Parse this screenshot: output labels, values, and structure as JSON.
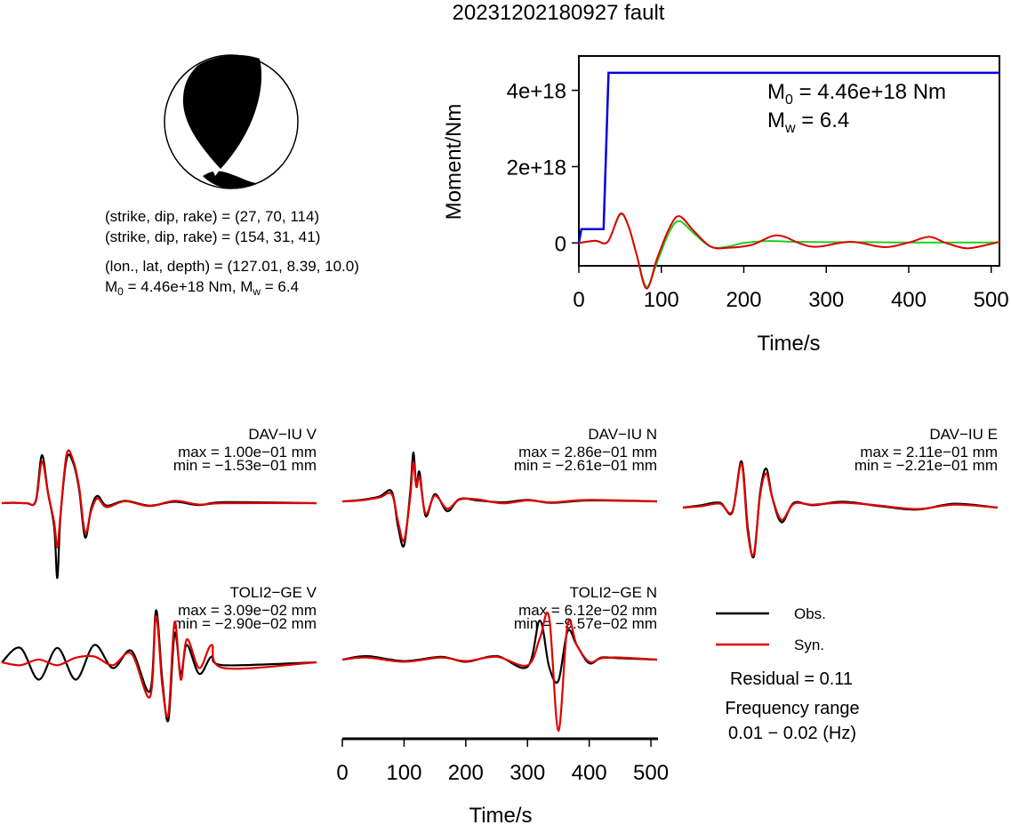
{
  "title": "20231202180927 fault",
  "mechanism": {
    "line1": "(strike, dip, rake) = (27, 70, 114)",
    "line2": "(strike, dip, rake) = (154, 31, 41)",
    "line3": "(lon., lat, depth) = (127.01, 8.39, 10.0)",
    "line4_m0": "M",
    "line4_m0_sub": "0",
    "line4_m0_rest": " = 4.46e+18 Nm, M",
    "line4_mw_sub": "w",
    "line4_mw_rest": " = 6.4"
  },
  "moment_panel": {
    "ylabel": "Moment/Nm",
    "xlabel": "Time/s",
    "m0_label": "M",
    "m0_sub": "0",
    "m0_rest": " = 4.46e+18 Nm",
    "mw_label": "M",
    "mw_sub": "w",
    "mw_rest": " = 6.4"
  },
  "waveform_axis": {
    "xlabel": "Time/s"
  },
  "legend": {
    "obs": "Obs.",
    "syn": "Syn.",
    "residual": "Residual = 0.11",
    "freq_label": "Frequency range",
    "freq_value": "0.01 − 0.02 (Hz)"
  },
  "colors": {
    "obs": "#000000",
    "syn": "#e00000",
    "cumulative": "#0000dd",
    "rate_syn": "#e00000",
    "rate_ref": "#22cc22"
  },
  "chart_data": [
    {
      "type": "line",
      "name": "moment",
      "xlim": [
        0,
        510
      ],
      "ylim": [
        -6e+17,
        4.9e+18
      ],
      "xticks": [
        "0",
        "100",
        "200",
        "300",
        "400",
        "500"
      ],
      "xtick_values": [
        0,
        100,
        200,
        300,
        400,
        500
      ],
      "yticks": [
        "0",
        "2e+18",
        "4e+18"
      ],
      "ytick_values": [
        0,
        2e+18,
        4e+18
      ],
      "series": [
        {
          "color": "#0000dd",
          "x": [
            0,
            3,
            30,
            36,
            40,
            510
          ],
          "y": [
            0,
            3.6e+17,
            3.6e+17,
            4.46e+18,
            4.46e+18,
            4.46e+18
          ]
        },
        {
          "color": "#22cc22",
          "x": [
            0,
            20,
            35,
            50,
            60,
            70,
            82,
            95,
            110,
            122,
            140,
            160,
            180,
            200,
            230,
            260,
            300,
            350,
            400,
            450,
            510
          ],
          "y": [
            0,
            5e+16,
            3e+16,
            7.4e+17,
            4.5e+17,
            -3e+17,
            -1.15e+18,
            -5e+17,
            3e+17,
            5.7e+17,
            2.4e+17,
            -1e+17,
            -1e+17,
            0,
            5e+16,
            3e+16,
            2e+16,
            2e+16,
            1e+16,
            1e+16,
            1e+16
          ]
        },
        {
          "color": "#e00000",
          "x": [
            0,
            20,
            35,
            50,
            60,
            70,
            82,
            95,
            110,
            122,
            140,
            160,
            180,
            210,
            240,
            270,
            290,
            330,
            370,
            400,
            425,
            445,
            470,
            495,
            510
          ],
          "y": [
            0,
            6e+16,
            3e+16,
            7.6e+17,
            4.5e+17,
            -3e+17,
            -1.2e+18,
            -4e+17,
            4e+17,
            7e+17,
            3e+17,
            -1e+17,
            -1.3e+17,
            -5e+16,
            2e+17,
            -3e+16,
            -1e+17,
            3e+16,
            -1.1e+17,
            1e+16,
            1.6e+17,
            0,
            -1.4e+17,
            -5e+16,
            3e+16
          ]
        }
      ]
    },
    {
      "type": "line",
      "station": "DAV−IU V",
      "max": "max = 1.00e−01 mm",
      "min": "min = −1.53e−01 mm",
      "series": [
        {
          "name": "Obs.",
          "x": [
            0,
            20,
            40,
            55,
            65,
            75,
            85,
            90,
            95,
            105,
            115,
            125,
            135,
            145,
            155,
            170,
            200,
            240,
            280,
            320,
            360,
            510
          ],
          "y": [
            0,
            0.01,
            0,
            0.05,
            0.98,
            0.2,
            -0.5,
            -1.53,
            -0.3,
            0.9,
            0.85,
            0.3,
            -0.7,
            -0.1,
            0.15,
            -0.05,
            0.05,
            -0.05,
            0.03,
            -0.04,
            0.02,
            0
          ]
        },
        {
          "name": "Syn.",
          "x": [
            0,
            20,
            40,
            55,
            65,
            75,
            85,
            90,
            95,
            105,
            115,
            125,
            135,
            145,
            155,
            170,
            200,
            240,
            280,
            320,
            360,
            510
          ],
          "y": [
            0,
            0.01,
            0,
            0.03,
            0.85,
            0.2,
            -0.4,
            -0.9,
            -0.25,
            1.0,
            0.9,
            0.35,
            -0.6,
            -0.15,
            0.1,
            -0.08,
            0.04,
            -0.06,
            0.05,
            -0.03,
            0.0,
            0
          ]
        }
      ]
    },
    {
      "type": "line",
      "station": "DAV−IU N",
      "max": "max = 2.86e−01 mm",
      "min": "min = −2.61e−01 mm",
      "series": [
        {
          "name": "Obs.",
          "x": [
            0,
            30,
            60,
            80,
            90,
            100,
            110,
            115,
            120,
            125,
            135,
            150,
            170,
            190,
            220,
            260,
            300,
            340,
            400,
            510
          ],
          "y": [
            0,
            0.03,
            0.1,
            0.2,
            -0.5,
            -0.9,
            0.2,
            1.0,
            0.3,
            0.6,
            -0.3,
            0.15,
            -0.2,
            0.05,
            0.02,
            -0.02,
            0.03,
            -0.03,
            0.02,
            0
          ]
        },
        {
          "name": "Syn.",
          "x": [
            0,
            30,
            60,
            80,
            90,
            100,
            110,
            115,
            120,
            125,
            135,
            150,
            170,
            190,
            220,
            260,
            300,
            340,
            400,
            510
          ],
          "y": [
            0,
            0.02,
            0.08,
            0.15,
            -0.4,
            -0.8,
            0.1,
            0.8,
            0.3,
            0.5,
            -0.25,
            0.12,
            -0.15,
            0.04,
            0.04,
            -0.04,
            0.02,
            -0.02,
            0.03,
            0
          ]
        }
      ]
    },
    {
      "type": "line",
      "station": "DAV−IU E",
      "max": "max = 2.11e−01 mm",
      "min": "min = −2.21e−01 mm",
      "series": [
        {
          "name": "Obs.",
          "x": [
            0,
            30,
            60,
            80,
            95,
            105,
            115,
            125,
            135,
            145,
            160,
            180,
            210,
            260,
            320,
            380,
            440,
            510
          ],
          "y": [
            0,
            0.05,
            0.1,
            -0.1,
            0.95,
            -0.4,
            -1.0,
            0.3,
            0.8,
            0.2,
            -0.3,
            0.1,
            0.05,
            0.12,
            0.03,
            -0.04,
            0.08,
            0
          ]
        },
        {
          "name": "Syn.",
          "x": [
            0,
            30,
            60,
            80,
            95,
            105,
            115,
            125,
            135,
            145,
            160,
            180,
            210,
            260,
            320,
            380,
            440,
            510
          ],
          "y": [
            0,
            0.03,
            0.08,
            -0.08,
            0.9,
            -0.5,
            -0.95,
            0.25,
            0.7,
            0.2,
            -0.25,
            0.08,
            0.06,
            0.1,
            0.04,
            -0.03,
            0.06,
            0
          ]
        }
      ]
    },
    {
      "type": "line",
      "station": "TOLI2−GE V",
      "max": "max = 3.09e−02 mm",
      "min": "min = −2.90e−02 mm",
      "series": [
        {
          "name": "Obs.",
          "x": [
            0,
            30,
            60,
            90,
            120,
            150,
            180,
            210,
            240,
            250,
            260,
            270,
            280,
            290,
            300,
            320,
            340,
            360,
            510
          ],
          "y": [
            0,
            0.25,
            -0.3,
            0.25,
            -0.3,
            0.3,
            -0.1,
            0.2,
            -0.5,
            0.9,
            -0.3,
            -1.0,
            0.5,
            -0.2,
            0.3,
            -0.2,
            0.1,
            -0.05,
            0
          ]
        },
        {
          "name": "Syn.",
          "x": [
            0,
            30,
            60,
            90,
            120,
            150,
            180,
            210,
            240,
            250,
            260,
            270,
            280,
            290,
            300,
            320,
            340,
            360,
            510
          ],
          "y": [
            0,
            -0.05,
            0.05,
            -0.05,
            0.08,
            0.1,
            -0.05,
            0.15,
            -0.6,
            0.8,
            -0.4,
            -0.9,
            0.7,
            -0.3,
            0.4,
            -0.1,
            0.3,
            -0.1,
            0
          ]
        }
      ]
    },
    {
      "type": "line",
      "station": "TOLI2−GE N",
      "max": "max = 6.12e−02 mm",
      "min": "min = −9.57e−02 mm",
      "series": [
        {
          "name": "Obs.",
          "x": [
            0,
            40,
            100,
            160,
            200,
            250,
            300,
            320,
            335,
            350,
            365,
            380,
            400,
            420,
            450,
            510
          ],
          "y": [
            0,
            0.05,
            -0.02,
            0.04,
            -0.03,
            0.05,
            -0.1,
            0.55,
            -0.1,
            -0.3,
            0.4,
            0.2,
            -0.05,
            0.03,
            0.02,
            0
          ]
        },
        {
          "name": "Syn.",
          "x": [
            0,
            40,
            100,
            160,
            200,
            250,
            300,
            320,
            335,
            350,
            365,
            380,
            400,
            420,
            450,
            510
          ],
          "y": [
            0,
            0.03,
            -0.03,
            0.03,
            -0.02,
            0.04,
            -0.08,
            0.3,
            0.6,
            -1.0,
            0.5,
            0.2,
            -0.03,
            0.02,
            0.03,
            0
          ]
        }
      ]
    }
  ]
}
